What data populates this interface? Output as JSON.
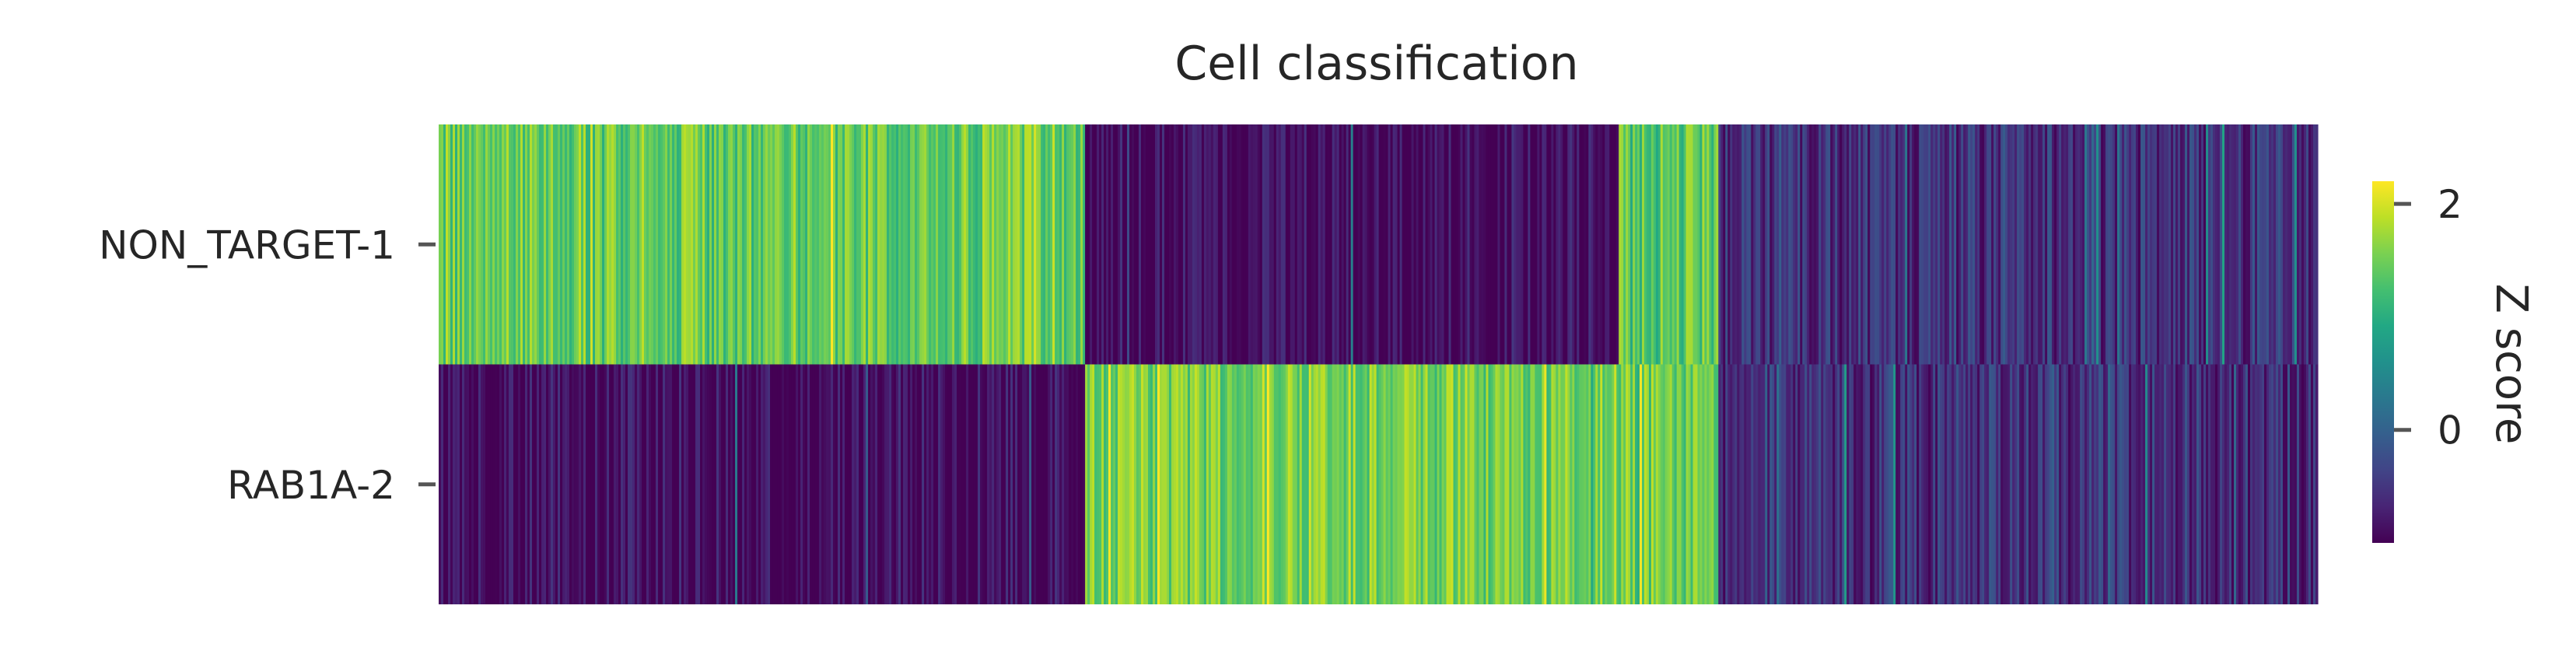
{
  "chart_data": {
    "type": "heatmap",
    "title": "Cell classification",
    "rows": [
      "NON_TARGET-1",
      "RAB1A-2"
    ],
    "colorbar": {
      "label": "Z score",
      "ticks": [
        2,
        0
      ],
      "range": [
        -1.0,
        2.2
      ],
      "colormap": "viridis"
    },
    "column_groups": [
      {
        "share": 0.344,
        "row_means": [
          1.45,
          -0.95
        ]
      },
      {
        "share": 0.284,
        "row_means": [
          -0.95,
          1.55
        ]
      },
      {
        "share": 0.053,
        "row_means": [
          1.35,
          1.45
        ]
      },
      {
        "share": 0.319,
        "row_means": [
          -0.55,
          -0.55
        ]
      }
    ],
    "grid": false
  }
}
